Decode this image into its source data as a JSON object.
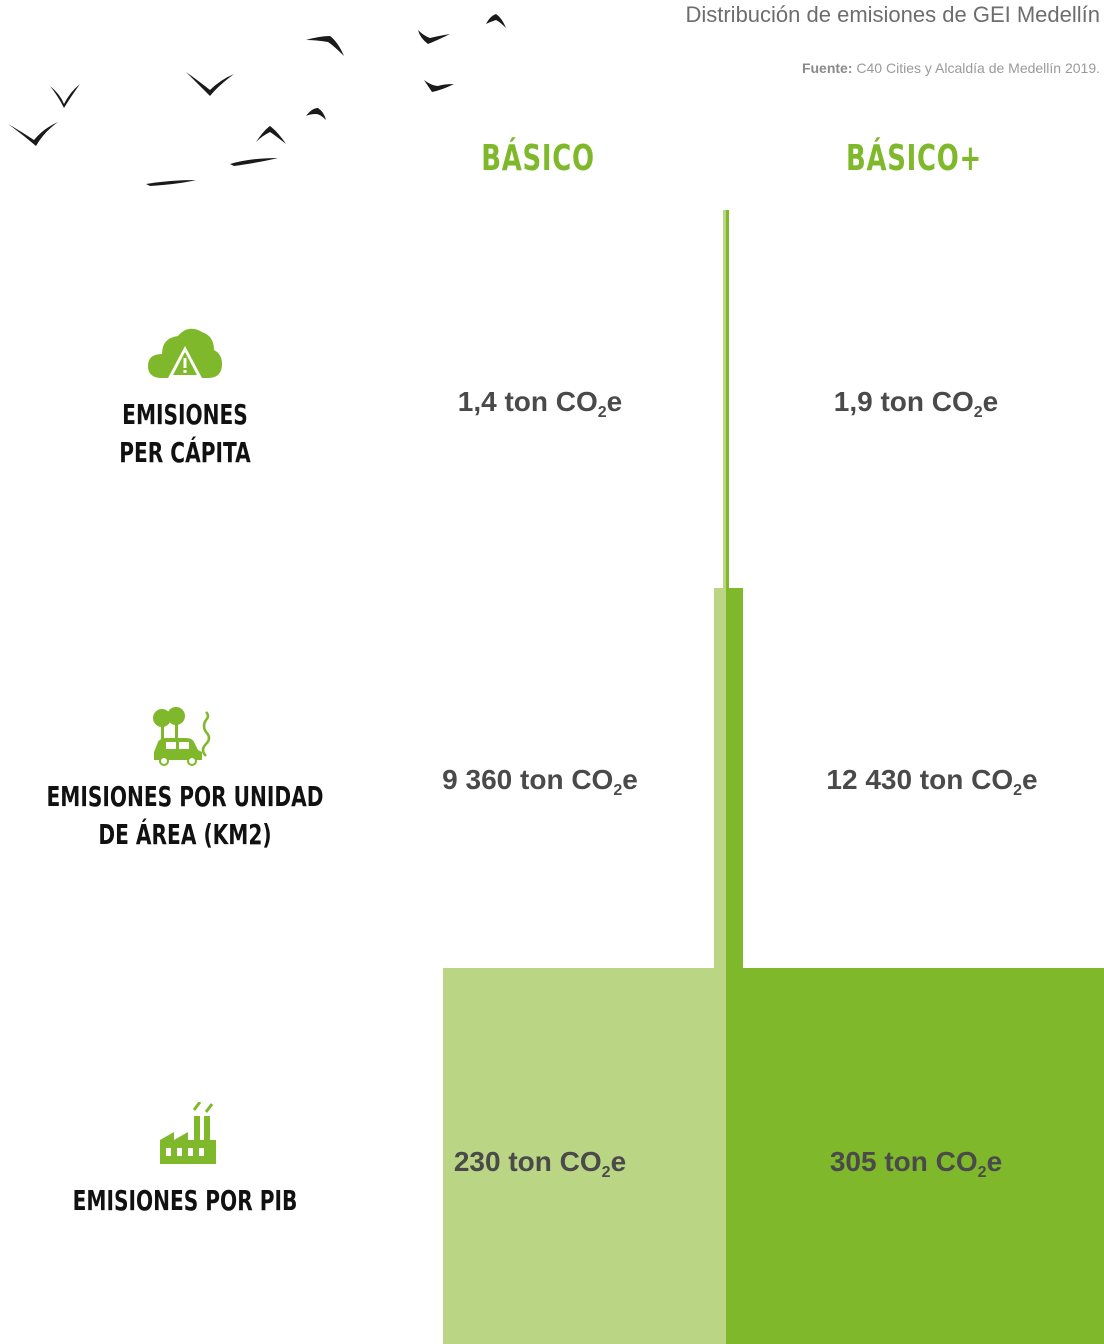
{
  "title": "Distribución de emisiones de GEI Medellín",
  "source": {
    "label": "Fuente:",
    "text": "C40 Cities y Alcaldía de Medellín 2019."
  },
  "colors": {
    "basico": "#bad685",
    "basico_plus": "#7fb92b",
    "accent": "#7fb92b",
    "text": "#4a4a4a"
  },
  "chart_data": {
    "type": "bar",
    "series": [
      {
        "name": "BÁSICO",
        "values": [
          1.4,
          9360,
          230
        ]
      },
      {
        "name": "BÁSICO+",
        "values": [
          1.9,
          12430,
          305
        ]
      }
    ],
    "categories": [
      "EMISIONES PER CÁPITA",
      "EMISIONES POR UNIDAD DE ÁREA (KM2)",
      "EMISIONES POR PIB"
    ],
    "unit": "ton CO2e",
    "rows": [
      {
        "label_lines": [
          "EMISIONES",
          "PER CÁPITA"
        ],
        "icon": "cloud-warning-icon",
        "basico_text": "1,4 ton CO",
        "basico_plus_text": "1,9 ton CO"
      },
      {
        "label_lines": [
          "EMISIONES POR UNIDAD",
          "DE ÁREA (KM2)"
        ],
        "icon": "car-trees-pollution-icon",
        "basico_text": "9 360 ton CO",
        "basico_plus_text": "12 430 ton CO"
      },
      {
        "label_lines": [
          "EMISIONES POR PIB"
        ],
        "icon": "factory-icon",
        "basico_text": "230 ton CO",
        "basico_plus_text": "305 ton CO"
      }
    ],
    "unit_sub": "2",
    "unit_suffix": "e"
  },
  "birds_icon": "flying-birds-icon"
}
